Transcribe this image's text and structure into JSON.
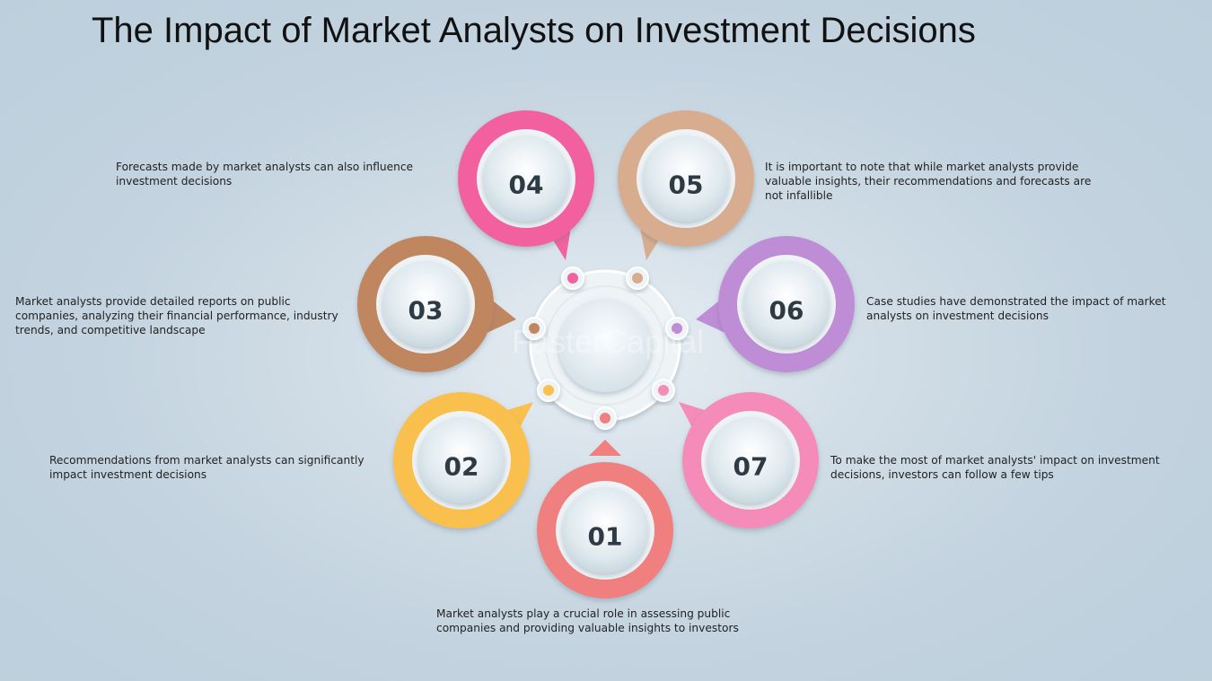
{
  "title": "The Impact of Market Analysts on Investment Decisions",
  "watermark": "FasterCapital",
  "steps": [
    {
      "number": "01",
      "text": "Market analysts play a crucial role in assessing public companies and providing valuable insights to investors",
      "color": "#f07f7f"
    },
    {
      "number": "02",
      "text": "Recommendations from market analysts can significantly impact investment decisions",
      "color": "#f9c04d"
    },
    {
      "number": "03",
      "text": "Market analysts provide detailed reports on public companies, analyzing their financial performance, industry trends, and competitive landscape",
      "color": "#c08660"
    },
    {
      "number": "04",
      "text": "Forecasts made by market analysts can also influence investment decisions",
      "color": "#f261a0"
    },
    {
      "number": "05",
      "text": "It is important to note that while market analysts provide valuable insights, their recommendations and forecasts are not infallible",
      "color": "#d8ad8f"
    },
    {
      "number": "06",
      "text": "Case studies have demonstrated the impact of market analysts on investment decisions",
      "color": "#bf8cd6"
    },
    {
      "number": "07",
      "text": "To make the most of market analysts' impact on investment decisions, investors can follow a few tips",
      "color": "#f48bb9"
    }
  ]
}
